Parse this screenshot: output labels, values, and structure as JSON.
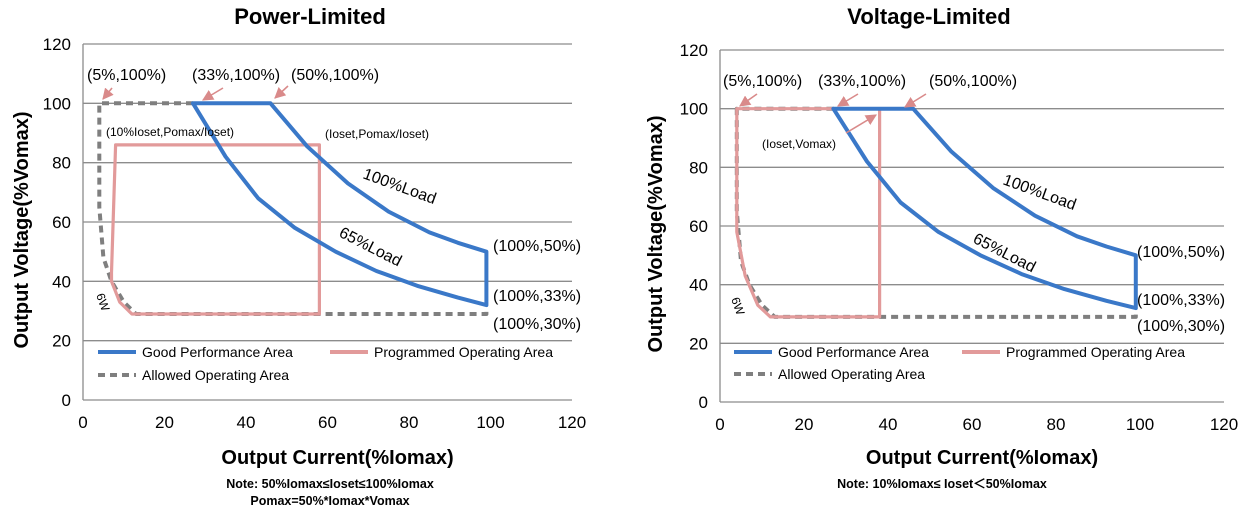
{
  "chart_data": [
    {
      "type": "line",
      "title": "Power-Limited",
      "xlabel": "Output Current(%Iomax)",
      "ylabel": "Output Voltage(%Vomax)",
      "xlim": [
        0,
        120
      ],
      "ylim": [
        0,
        120
      ],
      "xticks": [
        "0",
        "20",
        "40",
        "60",
        "80",
        "100",
        "120"
      ],
      "yticks": [
        "0",
        "20",
        "40",
        "60",
        "80",
        "100",
        "120"
      ],
      "grid": "horizontal",
      "legend_position": "bottom-left",
      "series": [
        {
          "name": "Good Performance Area",
          "color": "#3a78c8",
          "style": "solid",
          "x": [
            27,
            46,
            55,
            65,
            75,
            85,
            92,
            99,
            99,
            92,
            82,
            72,
            62,
            52,
            43,
            35,
            27
          ],
          "y": [
            100,
            100,
            85.5,
            73,
            63.5,
            56.5,
            53,
            50,
            32,
            34.5,
            38.5,
            43.5,
            50,
            58,
            68,
            82,
            100
          ]
        },
        {
          "name": "Programmed Operating Area",
          "color": "#e29a9a",
          "style": "solid",
          "x": [
            7,
            8,
            58,
            58,
            12,
            9,
            7,
            7
          ],
          "y": [
            43,
            86,
            86,
            29,
            29,
            33,
            40,
            43
          ]
        },
        {
          "name": "Allowed Operating Area",
          "color": "#7f7f7f",
          "style": "dashed",
          "x": [
            27,
            4,
            4,
            5,
            7,
            10,
            13,
            99,
            99
          ],
          "y": [
            100,
            100,
            65,
            48,
            40,
            33,
            29,
            29,
            30
          ]
        }
      ],
      "annotations": [
        "(5%,100%)",
        "(33%,100%)",
        "(50%,100%)",
        "(10%Ioset,Pomax/Ioset)",
        "(Ioset,Pomax/Ioset)",
        "100%Load",
        "65%Load",
        "6W",
        "(100%,50%)",
        "(100%,33%)",
        "(100%,30%)"
      ],
      "note": [
        "Note:  50%Iomax≤Ioset≤100%Iomax",
        "Pomax=50%*Iomax*Vomax"
      ]
    },
    {
      "type": "line",
      "title": "Voltage-Limited",
      "xlabel": "Output Current(%Iomax)",
      "ylabel": "Output Voltage(%Vomax)",
      "xlim": [
        0,
        120
      ],
      "ylim": [
        0,
        120
      ],
      "xticks": [
        "0",
        "20",
        "40",
        "60",
        "80",
        "100",
        "120"
      ],
      "yticks": [
        "0",
        "20",
        "40",
        "60",
        "80",
        "100",
        "120"
      ],
      "grid": "horizontal",
      "legend_position": "bottom-left",
      "series": [
        {
          "name": "Good Performance Area",
          "color": "#3a78c8",
          "style": "solid",
          "x": [
            27,
            46,
            55,
            65,
            75,
            85,
            92,
            99,
            99,
            92,
            82,
            72,
            62,
            52,
            43,
            35,
            27
          ],
          "y": [
            100,
            100,
            85.5,
            73,
            63.5,
            56.5,
            53,
            50,
            32,
            34.5,
            38.5,
            43.5,
            50,
            58,
            68,
            82,
            100
          ]
        },
        {
          "name": "Programmed Operating Area",
          "color": "#e29a9a",
          "style": "solid",
          "x": [
            4,
            4,
            38,
            38,
            12,
            9,
            6,
            4
          ],
          "y": [
            58,
            100,
            100,
            29,
            29,
            33,
            43,
            58
          ]
        },
        {
          "name": "Allowed Operating Area",
          "color": "#7f7f7f",
          "style": "dashed",
          "x": [
            27,
            4,
            4,
            5,
            7,
            10,
            13,
            99,
            99
          ],
          "y": [
            100,
            100,
            65,
            48,
            40,
            33,
            29,
            29,
            30
          ]
        }
      ],
      "annotations": [
        "(5%,100%)",
        "(33%,100%)",
        "(50%,100%)",
        "(Ioset,Vomax)",
        "100%Load",
        "65%Load",
        "6W",
        "(100%,50%)",
        "(100%,33%)",
        "(100%,30%)"
      ],
      "note": [
        "Note: 10%Iomax≤ Ioset＜50%Iomax"
      ]
    }
  ]
}
